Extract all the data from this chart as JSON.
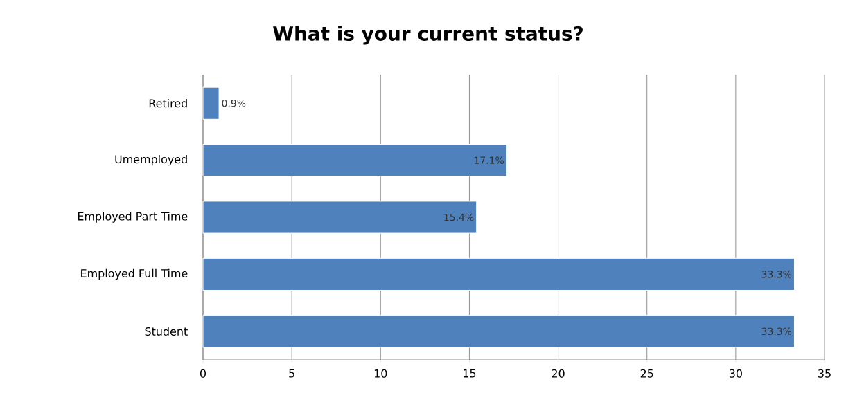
{
  "chart_data": {
    "type": "bar",
    "orientation": "horizontal",
    "title": "What is your current status?",
    "categories": [
      "Retired",
      "Umemployed",
      "Employed Part Time",
      "Employed Full Time",
      "Student"
    ],
    "values": [
      0.9,
      17.1,
      15.4,
      33.3,
      33.3
    ],
    "value_labels": [
      "0.9%",
      "17.1%",
      "15.4%",
      "33.3%",
      "33.3%"
    ],
    "color": "#4f81bd",
    "xlim": [
      0,
      35
    ],
    "xticks": [
      0,
      5,
      10,
      15,
      20,
      25,
      30,
      35
    ],
    "grid": "x"
  }
}
